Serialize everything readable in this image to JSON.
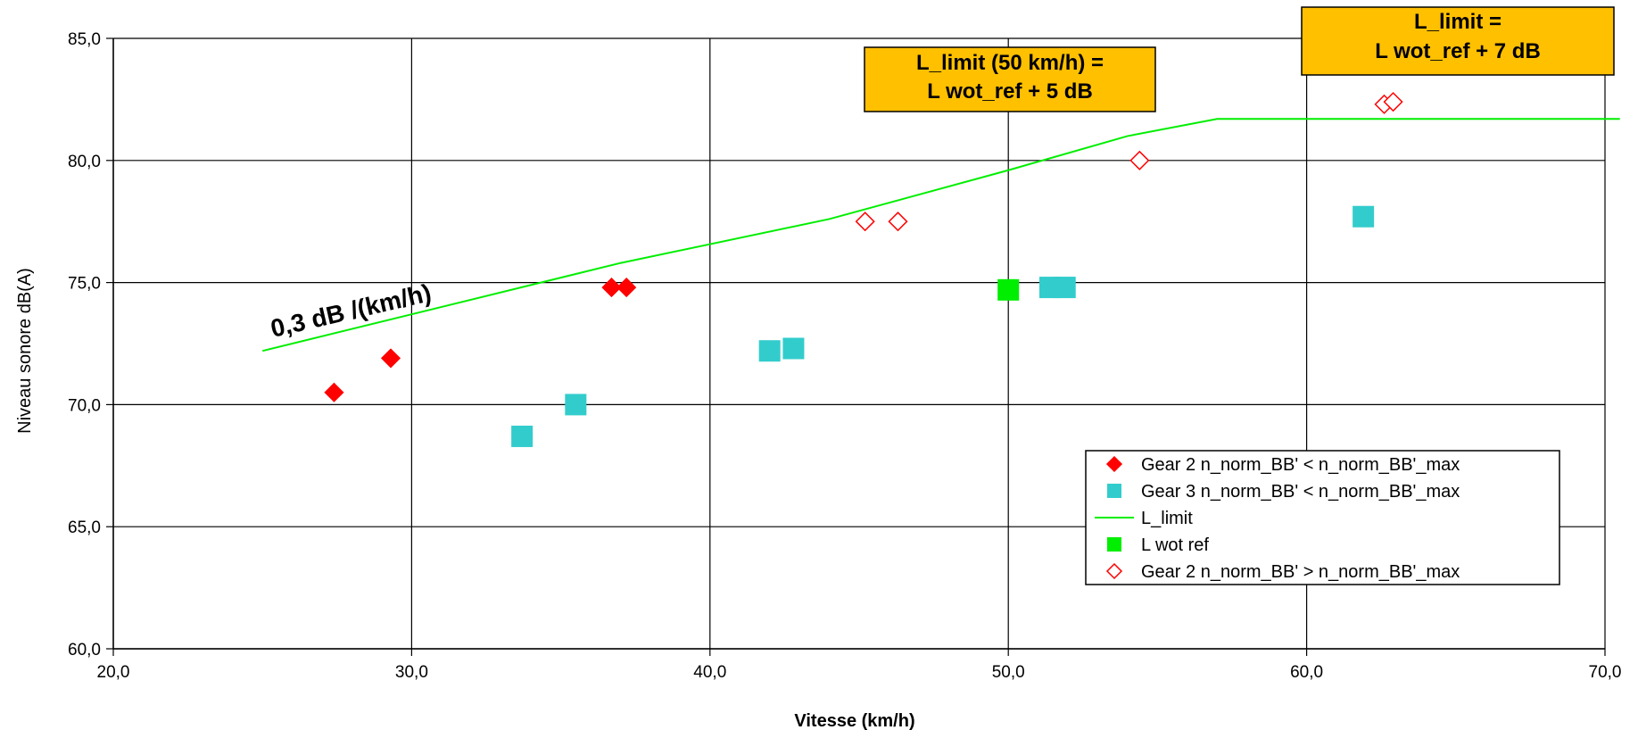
{
  "chart_data": {
    "type": "scatter",
    "title": "",
    "xlabel": "Vitesse (km/h)",
    "ylabel": "Niveau sonore dB(A)",
    "xlim": [
      20,
      70
    ],
    "ylim": [
      60,
      85
    ],
    "xticks": [
      20,
      30,
      40,
      50,
      60,
      70
    ],
    "yticks": [
      60,
      65,
      70,
      75,
      80,
      85
    ],
    "xtick_labels": [
      "20,0",
      "30,0",
      "40,0",
      "50,0",
      "60,0",
      "70,0"
    ],
    "ytick_labels": [
      "60,0",
      "65,0",
      "70,0",
      "75,0",
      "80,0",
      "85,0"
    ],
    "grid": true,
    "legend_position": "bottom-right",
    "series": [
      {
        "name": "Gear 2 n_norm_BB' < n_norm_BB'_max",
        "marker": "diamond-filled",
        "color": "#ff0000",
        "points": [
          [
            27.4,
            70.5
          ],
          [
            29.3,
            71.9
          ],
          [
            36.7,
            74.8
          ],
          [
            37.2,
            74.8
          ]
        ]
      },
      {
        "name": "Gear 3 n_norm_BB' < n_norm_BB'_max",
        "marker": "square-filled",
        "color": "#33cccc",
        "points": [
          [
            33.7,
            68.7
          ],
          [
            35.5,
            70.0
          ],
          [
            42.0,
            72.2
          ],
          [
            42.8,
            72.3
          ],
          [
            51.4,
            74.8
          ],
          [
            51.9,
            74.8
          ],
          [
            61.9,
            77.7
          ]
        ]
      },
      {
        "name": "L_limit",
        "marker": "line",
        "color": "#00ee00",
        "points": [
          [
            25.0,
            72.2
          ],
          [
            30.0,
            73.7
          ],
          [
            37.0,
            75.8
          ],
          [
            44.0,
            77.6
          ],
          [
            50.0,
            79.6
          ],
          [
            54.0,
            81.0
          ],
          [
            57.0,
            81.7
          ],
          [
            70.5,
            81.7
          ]
        ]
      },
      {
        "name": "L wot ref",
        "marker": "square-filled",
        "color": "#00ee00",
        "points": [
          [
            50.0,
            74.7
          ]
        ]
      },
      {
        "name": "Gear 2 n_norm_BB' > n_norm_BB'_max",
        "marker": "diamond-open",
        "color": "#ff0000",
        "points": [
          [
            45.2,
            77.5
          ],
          [
            46.3,
            77.5
          ],
          [
            54.4,
            80.0
          ],
          [
            62.6,
            82.3
          ],
          [
            62.9,
            82.4
          ]
        ]
      }
    ],
    "annotations": {
      "box1_line1": "L_limit (50 km/h) =",
      "box1_line2": "L wot_ref + 5 dB",
      "box2_line1": "L_limit =",
      "box2_line2": "L wot_ref + 7 dB",
      "slope_label": "0,3 dB /(km/h)",
      "box_color": "#ffc000"
    }
  }
}
